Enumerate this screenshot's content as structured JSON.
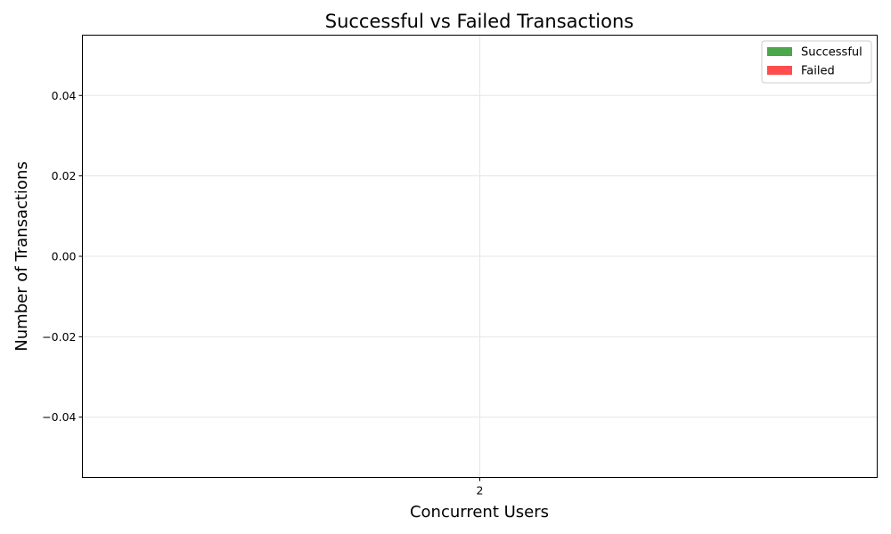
{
  "chart_data": {
    "type": "bar",
    "title": "Successful vs Failed Transactions",
    "xlabel": "Concurrent Users",
    "ylabel": "Number of Transactions",
    "categories": [
      "2"
    ],
    "series": [
      {
        "name": "Successful",
        "values": [
          0
        ],
        "color": "#4ca64c"
      },
      {
        "name": "Failed",
        "values": [
          0
        ],
        "color": "#ff4c4c"
      }
    ],
    "ylim": [
      -0.055,
      0.055
    ],
    "yticks": [
      -0.04,
      -0.02,
      0.0,
      0.02,
      0.04
    ],
    "ytick_labels": [
      "−0.04",
      "−0.02",
      "0.00",
      "0.02",
      "0.04"
    ],
    "grid": true,
    "legend_position": "top-right"
  }
}
